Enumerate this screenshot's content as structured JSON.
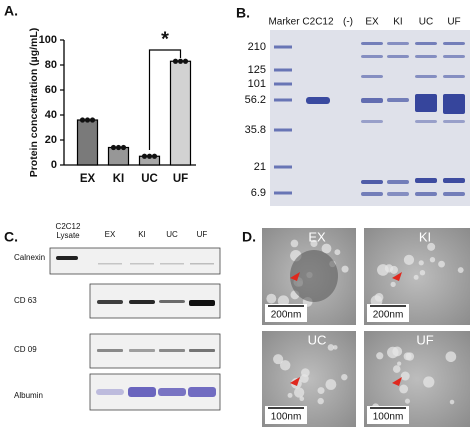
{
  "chart_data": {
    "type": "bar",
    "panel_label": "A.",
    "ylabel": "Protein concentration (µg/mL)",
    "categories": [
      "EX",
      "KI",
      "UC",
      "UF"
    ],
    "values": [
      36,
      14,
      7,
      83
    ],
    "colors": [
      "#7a7a7a",
      "#979797",
      "#a8a8a8",
      "#d2d2d2"
    ],
    "ylim": [
      0,
      100
    ],
    "yticks": [
      0,
      20,
      40,
      60,
      80,
      100
    ],
    "annotation": "*"
  },
  "panel_b": {
    "label": "B.",
    "lanes": [
      "Marker",
      "C2C12",
      "(-)",
      "EX",
      "KI",
      "UC",
      "UF"
    ],
    "markers": [
      "210",
      "125",
      "101",
      "56.2",
      "35.8",
      "21",
      "6.9"
    ]
  },
  "panel_c": {
    "label": "C.",
    "lysate_lane": [
      "C2C12",
      "Lysate"
    ],
    "lanes": [
      "EX",
      "KI",
      "UC",
      "UF"
    ],
    "rows": [
      "Calnexin",
      "CD 63",
      "CD 09",
      "Albumin"
    ]
  },
  "panel_d": {
    "label": "D.",
    "images": [
      {
        "label": "EX",
        "scale": "200nm"
      },
      {
        "label": "KI",
        "scale": "200nm"
      },
      {
        "label": "UC",
        "scale": "100nm"
      },
      {
        "label": "UF",
        "scale": "100nm"
      }
    ]
  }
}
